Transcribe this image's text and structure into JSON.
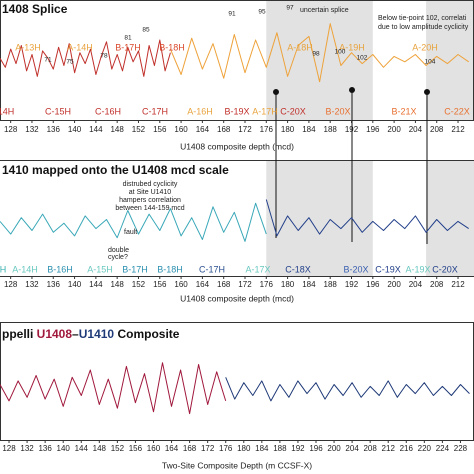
{
  "chart_data": [
    {
      "type": "line",
      "title": "1408 Splice",
      "xlabel": "U1408 composite depth (mcd)",
      "xlim": [
        126,
        215
      ],
      "xticks": [
        128,
        132,
        136,
        140,
        144,
        148,
        152,
        156,
        160,
        164,
        168,
        172,
        176,
        180,
        184,
        188,
        192,
        196,
        200,
        204,
        208,
        212
      ],
      "ylim": [
        -2.2,
        2.2
      ],
      "shaded": [
        [
          176,
          196
        ],
        [
          206,
          215
        ]
      ],
      "series": [
        {
          "color": "#c0302b",
          "x": [
            126,
            127,
            128,
            129,
            130,
            131,
            132,
            133,
            134,
            135,
            136,
            137,
            138,
            139,
            140,
            141,
            142,
            143,
            144,
            145,
            146,
            147,
            148,
            149,
            150,
            151,
            152,
            153,
            154,
            155,
            156,
            157,
            158
          ],
          "values": [
            0.1,
            -0.4,
            0.6,
            -0.2,
            0.8,
            -0.6,
            0.3,
            -0.9,
            0.5,
            0.1,
            -0.5,
            0.7,
            -0.3,
            0.9,
            -0.7,
            0.4,
            -0.2,
            0.6,
            -0.8,
            0.2,
            1.0,
            -0.5,
            0.3,
            -0.6,
            0.7,
            -0.1,
            0.5,
            -0.9,
            0.8,
            -0.3,
            1.1,
            -0.6,
            0.4
          ]
        },
        {
          "color": "#eea23a",
          "x": [
            158,
            160,
            162,
            164,
            166,
            168,
            170,
            172,
            174,
            176,
            178,
            180,
            182,
            184,
            186,
            188,
            190,
            192,
            194,
            196,
            198,
            200,
            202,
            204,
            206,
            208,
            210,
            212,
            214
          ],
          "values": [
            0.6,
            -0.8,
            1.2,
            -0.5,
            0.9,
            -1.0,
            1.4,
            -0.7,
            1.1,
            -0.4,
            1.5,
            -0.9,
            0.8,
            1.3,
            -1.2,
            2.0,
            -0.3,
            0.4,
            -0.2,
            0.3,
            -0.4,
            0.2,
            -0.1,
            0.3,
            -0.3,
            0.2,
            -0.2,
            0.3,
            -0.1
          ]
        }
      ],
      "cycle_labels": [
        "A-13H",
        "A-14H",
        "B-17H",
        "B-18H",
        "A-18H",
        "A-19H",
        "A-20H",
        "14H",
        "C-15H",
        "C-16H",
        "C-17H",
        "A-16H",
        "B-19X",
        "A-17H",
        "C-20X",
        "B-20X",
        "B-21X",
        "C-22X"
      ],
      "tie_points": [
        "71",
        "75",
        "78",
        "81",
        "85",
        "91",
        "95",
        "97",
        "98",
        "100",
        "102",
        "104"
      ],
      "annotations": [
        "uncertain splice",
        "Below tie-point 102, correlati",
        "due to low amplitude cyclicity"
      ]
    },
    {
      "type": "line",
      "title": "1410 mapped onto the U1408 mcd scale",
      "xlabel": "U1408 composite depth (mcd)",
      "xlim": [
        126,
        215
      ],
      "xticks": [
        128,
        132,
        136,
        140,
        144,
        148,
        152,
        156,
        160,
        164,
        168,
        172,
        176,
        180,
        184,
        188,
        192,
        196,
        200,
        204,
        208,
        212
      ],
      "ylim": [
        -2.2,
        2.2
      ],
      "shaded": [
        [
          176,
          196
        ],
        [
          206,
          215
        ]
      ],
      "series": [
        {
          "color": "#3aa8b8",
          "x": [
            126,
            128,
            130,
            132,
            134,
            136,
            138,
            140,
            142,
            144,
            146,
            148,
            150,
            152,
            154,
            156,
            158,
            160,
            162,
            164,
            166,
            168,
            170,
            172,
            174,
            176
          ],
          "values": [
            0.2,
            -0.5,
            0.4,
            -0.3,
            0.6,
            -0.4,
            0.1,
            -0.6,
            0.5,
            -0.2,
            0.3,
            -0.7,
            0.8,
            -0.5,
            0.6,
            -0.3,
            0.9,
            -0.6,
            0.4,
            -0.8,
            1.0,
            -0.4,
            0.7,
            -0.9,
            1.2,
            -0.5
          ]
        },
        {
          "color": "#23408a",
          "x": [
            176,
            178,
            180,
            182,
            184,
            186,
            188,
            190,
            192,
            194,
            196,
            198,
            200,
            202,
            204,
            206,
            208,
            210,
            212,
            214
          ],
          "values": [
            1.4,
            -0.6,
            0.5,
            -0.3,
            0.4,
            -0.5,
            0.3,
            -0.2,
            0.4,
            -0.4,
            0.2,
            -0.3,
            0.3,
            -0.2,
            0.5,
            -0.4,
            0.3,
            -0.3,
            0.2,
            -0.2
          ]
        }
      ],
      "cycle_labels": [
        "H",
        "A-14H",
        "B-16H",
        "A-15H",
        "B-17H",
        "B-18H",
        "C-17H",
        "A-17X",
        "C-18X",
        "B-20X",
        "C-19X",
        "A-19X",
        "C-20X"
      ],
      "annotations": [
        "distrubed cyclicity",
        "at Site U1410",
        "hampers correlation",
        "between 144-159 mcd",
        "double",
        "cycle?",
        "fault"
      ]
    },
    {
      "type": "line",
      "title": [
        "ppelli ",
        "U1408",
        "–",
        "U1410",
        " Composite"
      ],
      "xlabel": "Two-Site Composite Depth (m CCSF-X)",
      "xlim": [
        126,
        231
      ],
      "xticks": [
        128,
        132,
        136,
        140,
        144,
        148,
        152,
        156,
        160,
        164,
        168,
        172,
        176,
        180,
        184,
        188,
        192,
        196,
        200,
        204,
        208,
        212,
        216,
        220,
        224,
        228
      ],
      "ylim": [
        -2.2,
        2.2
      ],
      "series": [
        {
          "color": "#a0183c",
          "x": [
            126,
            128,
            130,
            132,
            134,
            136,
            138,
            140,
            142,
            144,
            146,
            148,
            150,
            152,
            154,
            156,
            158,
            160,
            162,
            164,
            166,
            168,
            170,
            172,
            174,
            176
          ],
          "values": [
            0.3,
            -0.6,
            0.5,
            -0.4,
            0.8,
            -0.5,
            0.6,
            -0.9,
            0.7,
            -0.3,
            1.1,
            -0.8,
            0.6,
            -1.0,
            1.3,
            -0.7,
            0.9,
            -1.2,
            1.5,
            -0.9,
            1.1,
            -1.3,
            1.4,
            -0.8,
            1.0,
            -0.6
          ]
        },
        {
          "color": "#1f3a78",
          "x": [
            176,
            178,
            180,
            182,
            184,
            186,
            188,
            190,
            192,
            194,
            196,
            198,
            200,
            202,
            204,
            206,
            208,
            210,
            212,
            214,
            216,
            218,
            220,
            222,
            224,
            226,
            228,
            230
          ],
          "values": [
            0.7,
            -0.5,
            0.4,
            -0.3,
            0.5,
            -0.6,
            0.3,
            -0.4,
            0.5,
            -0.2,
            0.4,
            -0.5,
            0.3,
            -0.3,
            0.4,
            -0.4,
            0.2,
            -0.3,
            0.5,
            -0.4,
            0.3,
            -0.2,
            0.4,
            -0.3,
            0.2,
            -0.3,
            0.3,
            -0.2
          ]
        }
      ]
    }
  ]
}
